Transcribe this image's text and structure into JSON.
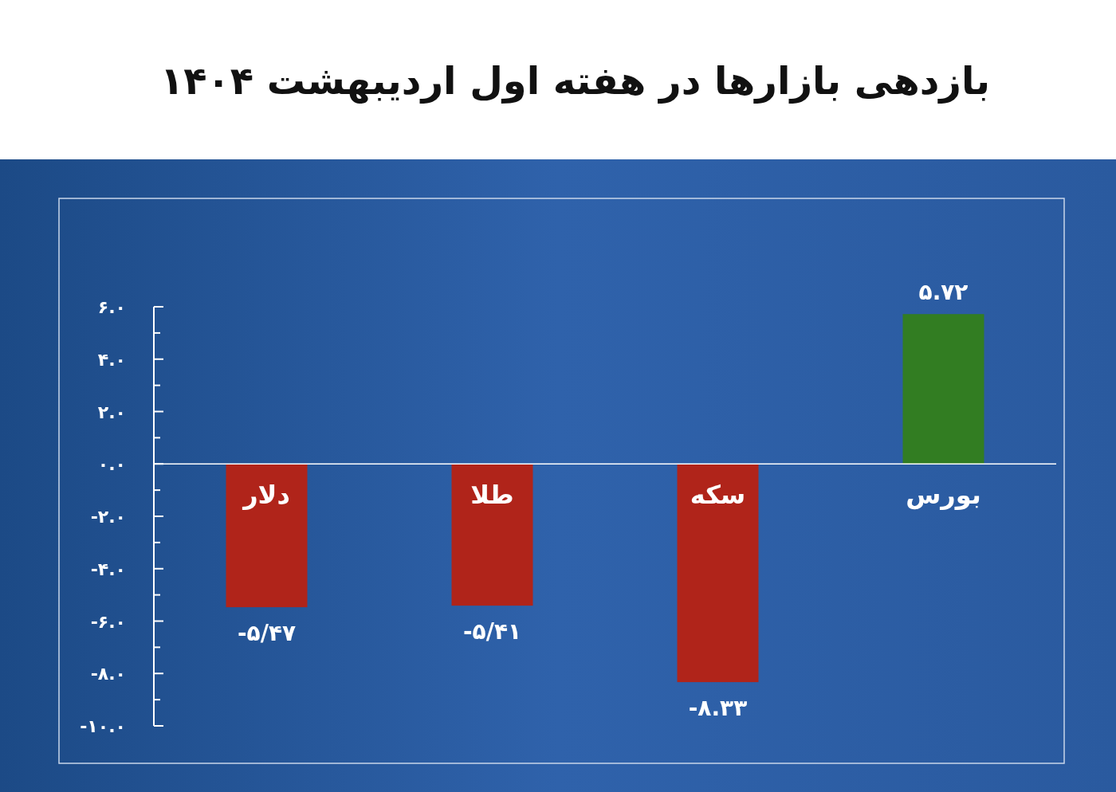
{
  "chart_data": {
    "type": "bar",
    "title": "بازدهی بازارها در هفته اول اردیبهشت ۱۴۰۴",
    "categories": [
      "دلار",
      "طلا",
      "سکه",
      "بورس"
    ],
    "values": [
      -5.47,
      -5.41,
      -8.33,
      5.72
    ],
    "colors": [
      "#b0241a",
      "#b0241a",
      "#b0241a",
      "#327d22"
    ],
    "value_labels": [
      "-۵/۴۷",
      "-۵/۴۱",
      "-۸.۳۳",
      "۵.۷۲"
    ],
    "ylim": [
      -10,
      6
    ],
    "yticks": [
      {
        "value": 6,
        "label": "۶.۰"
      },
      {
        "value": 5,
        "label": null
      },
      {
        "value": 4,
        "label": "۴.۰"
      },
      {
        "value": 3,
        "label": null
      },
      {
        "value": 2,
        "label": "۲.۰"
      },
      {
        "value": 1,
        "label": null
      },
      {
        "value": 0,
        "label": "۰.۰"
      },
      {
        "value": -1,
        "label": null
      },
      {
        "value": -2,
        "label": "-۲.۰"
      },
      {
        "value": -3,
        "label": null
      },
      {
        "value": -4,
        "label": "-۴.۰"
      },
      {
        "value": -5,
        "label": null
      },
      {
        "value": -6,
        "label": "-۶.۰"
      },
      {
        "value": -7,
        "label": null
      },
      {
        "value": -8,
        "label": "-۸.۰"
      },
      {
        "value": -9,
        "label": null
      },
      {
        "value": -10,
        "label": "-۱۰.۰"
      }
    ]
  }
}
